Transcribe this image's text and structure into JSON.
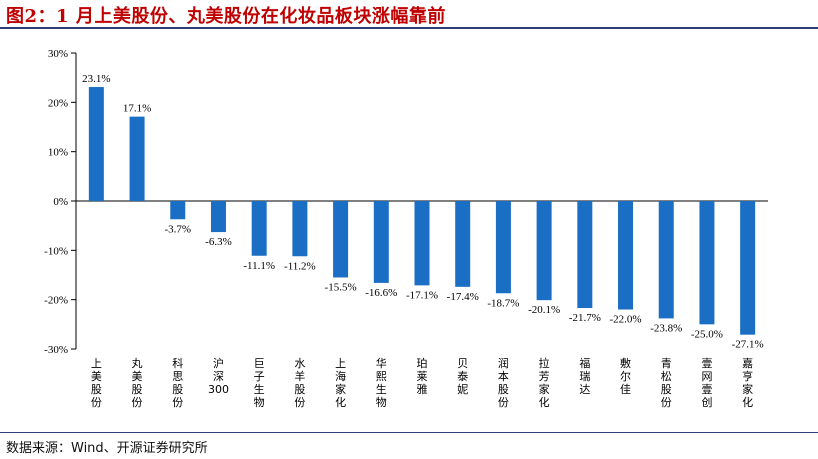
{
  "title": "图2：1 月上美股份、丸美股份在化妆品板块涨幅靠前",
  "source": "数据来源：Wind、开源证券研究所",
  "colors": {
    "bar": "#1a6fc4",
    "title": "#c00000",
    "rule": "#2f3e74"
  },
  "chart_data": {
    "type": "bar",
    "categories": [
      "上美股份",
      "丸美股份",
      "科思股份",
      "沪深300",
      "巨子生物",
      "水羊股份",
      "上海家化",
      "华熙生物",
      "珀莱雅",
      "贝泰妮",
      "润本股份",
      "拉芳家化",
      "福瑞达",
      "敷尔佳",
      "青松股份",
      "壹网壹创",
      "嘉亨家化"
    ],
    "values": [
      23.1,
      17.1,
      -3.7,
      -6.3,
      -11.1,
      -11.2,
      -15.5,
      -16.6,
      -17.1,
      -17.4,
      -18.7,
      -20.1,
      -21.7,
      -22.0,
      -23.8,
      -25.0,
      -27.1
    ],
    "value_labels": [
      "23.1%",
      "17.1%",
      "-3.7%",
      "-6.3%",
      "-11.1%",
      "-11.2%",
      "-15.5%",
      "-16.6%",
      "-17.1%",
      "-17.4%",
      "-18.7%",
      "-20.1%",
      "-21.7%",
      "-22.0%",
      "-23.8%",
      "-25.0%",
      "-27.1%"
    ],
    "ylim": [
      -30,
      30
    ],
    "yticks": [
      30,
      20,
      10,
      0,
      -10,
      -20,
      -30
    ],
    "ytick_labels": [
      "30%",
      "20%",
      "10%",
      "0%",
      "-10%",
      "-20%",
      "-30%"
    ],
    "grid": false,
    "legend": "none"
  }
}
